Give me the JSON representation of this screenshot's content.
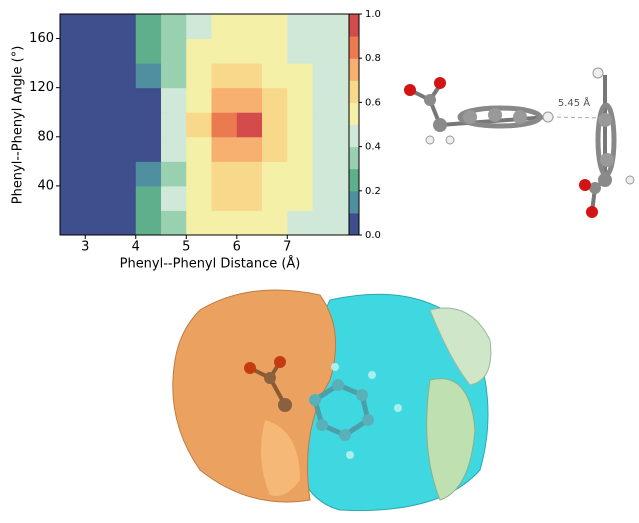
{
  "chart_data": {
    "type": "contour",
    "xlabel": "Phenyl--Phenyl Distance (Å)",
    "ylabel": "Phenyl--Phenyl Angle (°)",
    "xlim": [
      2.5,
      8.4
    ],
    "ylim": [
      0,
      180
    ],
    "xticks": [
      3,
      4,
      5,
      6,
      7
    ],
    "yticks": [
      40,
      80,
      120,
      160
    ],
    "x_edges": [
      2.5,
      3,
      3.5,
      4,
      4.5,
      5,
      5.5,
      6,
      6.5,
      7,
      7.5,
      8,
      8.4
    ],
    "y_edges": [
      0,
      20,
      40,
      60,
      80,
      100,
      120,
      140,
      160,
      180
    ],
    "z": [
      [
        0,
        0,
        0,
        0.25,
        0.35,
        0.5,
        0.55,
        0.55,
        0.5,
        0.48,
        0.48,
        0.48
      ],
      [
        0,
        0,
        0,
        0.25,
        0.4,
        0.55,
        0.6,
        0.6,
        0.55,
        0.5,
        0.48,
        0.48
      ],
      [
        0,
        0,
        0,
        0.1,
        0.35,
        0.55,
        0.62,
        0.65,
        0.58,
        0.5,
        0.48,
        0.48
      ],
      [
        0,
        0,
        0,
        0.05,
        0.4,
        0.58,
        0.75,
        0.75,
        0.6,
        0.5,
        0.48,
        0.48
      ],
      [
        0,
        0,
        0,
        0.05,
        0.42,
        0.6,
        0.8,
        0.9,
        0.62,
        0.5,
        0.48,
        0.48
      ],
      [
        0,
        0,
        0,
        0.05,
        0.4,
        0.58,
        0.75,
        0.75,
        0.6,
        0.5,
        0.48,
        0.48
      ],
      [
        0,
        0,
        0,
        0.1,
        0.35,
        0.55,
        0.62,
        0.62,
        0.55,
        0.5,
        0.48,
        0.48
      ],
      [
        0,
        0,
        0,
        0.2,
        0.35,
        0.5,
        0.58,
        0.58,
        0.52,
        0.48,
        0.48,
        0.48
      ],
      [
        0,
        0,
        0,
        0.25,
        0.35,
        0.45,
        0.55,
        0.55,
        0.5,
        0.48,
        0.48,
        0.48
      ]
    ],
    "clim": [
      0,
      1
    ],
    "cticks": [
      {
        "value": 0,
        "label": "0.0"
      },
      0.2,
      0.4,
      0.6,
      0.8,
      {
        "value": 1,
        "label": "1.0"
      }
    ],
    "colormap": [
      "#3f4e8c",
      "#4f8fa0",
      "#5fae8c",
      "#99d0b0",
      "#cfe8d8",
      "#f5f0a8",
      "#f8d88a",
      "#f7b070",
      "#ec7a50",
      "#d44b4b",
      "#a8123a"
    ]
  },
  "molecule": {
    "distance_label": "5.45 Å"
  }
}
